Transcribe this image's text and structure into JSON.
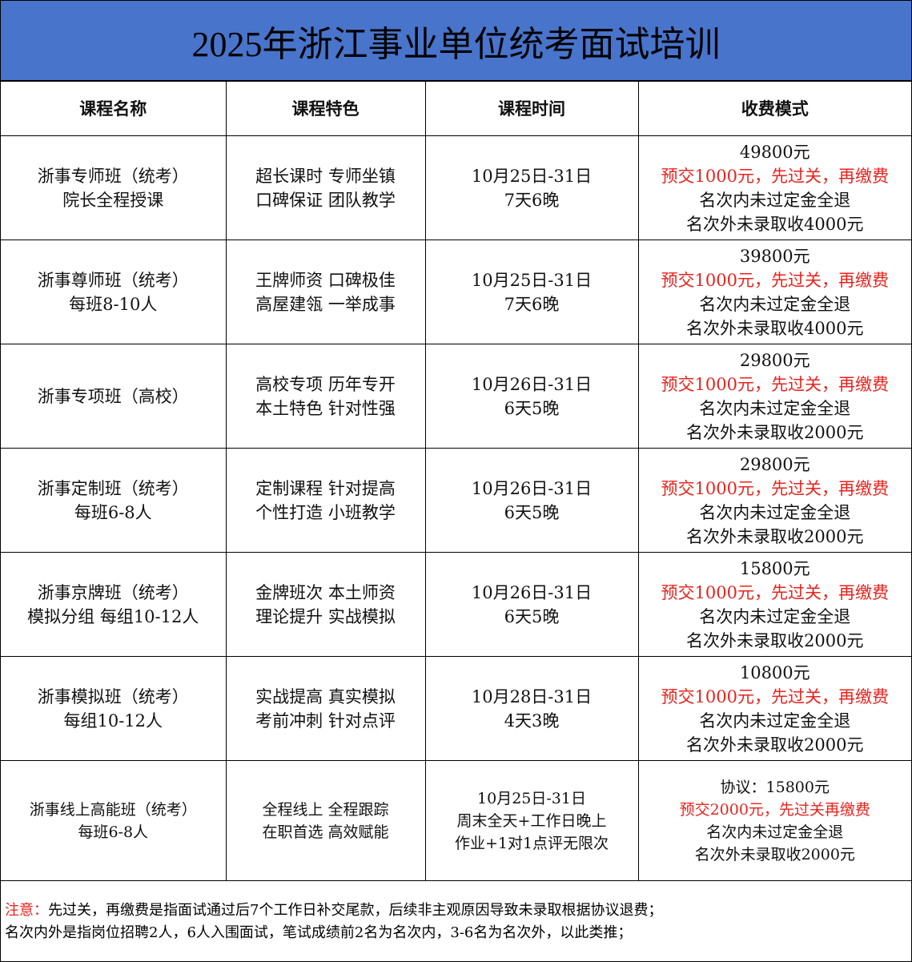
{
  "title": "2025年浙江事业单位统考面试培训",
  "headers": [
    "课程名称",
    "课程特色",
    "课程时间",
    "收费模式"
  ],
  "rows": [
    {
      "name": [
        "浙事专师班（统考）",
        "院长全程授课"
      ],
      "features": [
        "超长课时 专师坐镇",
        "口碑保证 团队教学"
      ],
      "time": [
        "10月25日-31日",
        "7天6晚"
      ],
      "fee": {
        "price": "49800元",
        "prepay": "预交1000元，先过关，再缴费",
        "refund_in": "名次内未过定金全退",
        "refund_out": "名次外未录取收4000元"
      }
    },
    {
      "name": [
        "浙事尊师班（统考）",
        "每班8-10人"
      ],
      "features": [
        "王牌师资 口碑极佳",
        "高屋建瓴 一举成事"
      ],
      "time": [
        "10月25日-31日",
        "7天6晚"
      ],
      "fee": {
        "price": "39800元",
        "prepay": "预交1000元，先过关，再缴费",
        "refund_in": "名次内未过定金全退",
        "refund_out": "名次外未录取收4000元"
      }
    },
    {
      "name": [
        "浙事专项班（高校）"
      ],
      "features": [
        "高校专项 历年专开",
        "本土特色 针对性强"
      ],
      "time": [
        "10月26日-31日",
        "6天5晚"
      ],
      "fee": {
        "price": "29800元",
        "prepay": "预交1000元，先过关，再缴费",
        "refund_in": "名次内未过定金全退",
        "refund_out": "名次外未录取收2000元"
      }
    },
    {
      "name": [
        "浙事定制班（统考）",
        "每班6-8人"
      ],
      "features": [
        "定制课程 针对提高",
        "个性打造 小班教学"
      ],
      "time": [
        "10月26日-31日",
        "6天5晚"
      ],
      "fee": {
        "price": "29800元",
        "prepay": "预交1000元，先过关，再缴费",
        "refund_in": "名次内未过定金全退",
        "refund_out": "名次外未录取收2000元"
      }
    },
    {
      "name": [
        "浙事京牌班（统考）",
        "模拟分组 每组10-12人"
      ],
      "features": [
        "金牌班次 本土师资",
        "理论提升 实战模拟"
      ],
      "time": [
        "10月26日-31日",
        "6天5晚"
      ],
      "fee": {
        "price": "15800元",
        "prepay": "预交1000元，先过关，再缴费",
        "refund_in": "名次内未过定金全退",
        "refund_out": "名次外未录取收2000元"
      }
    },
    {
      "name": [
        "浙事模拟班（统考）",
        "每组10-12人"
      ],
      "features": [
        "实战提高 真实模拟",
        "考前冲刺 针对点评"
      ],
      "time": [
        "10月28日-31日",
        "4天3晚"
      ],
      "fee": {
        "price": "10800元",
        "prepay": "预交1000元，先过关，再缴费",
        "refund_in": "名次内未过定金全退",
        "refund_out": "名次外未录取收2000元"
      }
    },
    {
      "name": [
        "浙事线上高能班（统考）",
        "每班6-8人"
      ],
      "features": [
        "全程线上 全程跟踪",
        "在职首选 高效赋能"
      ],
      "time": [
        "10月25日-31日",
        "周末全天+工作日晚上",
        "作业+1对1点评无限次"
      ],
      "fee": {
        "price": "协议：15800元",
        "prepay": "预交2000元，先过关再缴费",
        "refund_in": "名次内未过定金全退",
        "refund_out": "名次外未录取收2000元"
      }
    }
  ],
  "notes": {
    "label": "注意：",
    "line1": "先过关，再缴费是指面试通过后7个工作日补交尾款，后续非主观原因导致未录取根据协议退费；",
    "line2": "名次内外是指岗位招聘2人，6人入围面试，笔试成绩前2名为名次内，3-6名为名次外，以此类推；"
  },
  "colors": {
    "title_bg": "#4874cb",
    "accent_red": "#e8231e"
  }
}
